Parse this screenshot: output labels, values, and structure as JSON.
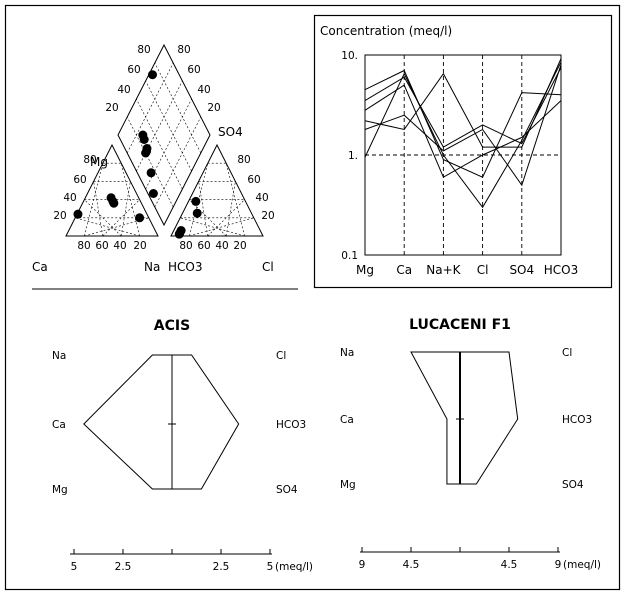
{
  "chart_data": [
    {
      "id": "piper",
      "type": "scatter",
      "title": "",
      "labels": {
        "mg": "Mg",
        "so4": "SO4",
        "ca": "Ca",
        "na": "Na",
        "hco3": "HCO3",
        "cl": "Cl"
      },
      "ticks": [
        "80",
        "60",
        "40",
        "20"
      ],
      "left_triangle_points": [
        {
          "ca": 10,
          "mg": 20
        },
        {
          "ca": 30,
          "mg": 42
        },
        {
          "ca": 30,
          "mg": 38
        },
        {
          "ca": 30,
          "mg": 36
        },
        {
          "ca": 75,
          "mg": 24
        }
      ],
      "right_triangle_points": [
        {
          "cl": 8,
          "so4": 38
        },
        {
          "cl": 16,
          "so4": 25
        },
        {
          "cl": 8,
          "so4": 6
        },
        {
          "cl": 8,
          "so4": 3
        },
        {
          "cl": 8,
          "so4": 2
        }
      ],
      "diamond_points": [
        {
          "u": 0.29,
          "v": 0.06
        },
        {
          "u": 0.43,
          "v": 0.15
        },
        {
          "u": 0.6,
          "v": 0.22
        },
        {
          "u": 0.6,
          "v": 0.2
        },
        {
          "u": 0.61,
          "v": 0.24
        },
        {
          "u": 0.69,
          "v": 0.26
        },
        {
          "u": 0.73,
          "v": 0.27
        },
        {
          "u": 0.96,
          "v": 0.71
        }
      ]
    },
    {
      "id": "schoeller",
      "type": "line",
      "title": "Concentration (meq/l)",
      "categories": [
        "Mg",
        "Ca",
        "Na+K",
        "Cl",
        "SO4",
        "HCO3"
      ],
      "yscale": "log",
      "ylim": [
        0.1,
        10
      ],
      "ytick_labels": [
        "10.",
        "1.",
        "0.1"
      ],
      "series": [
        {
          "values": [
            0.95,
            6.5,
            1.0,
            0.3,
            1.4,
            8.5
          ]
        },
        {
          "values": [
            2.2,
            1.8,
            6.5,
            1.2,
            1.2,
            9.2
          ]
        },
        {
          "values": [
            3.5,
            6.0,
            1.2,
            2.0,
            1.3,
            7.5
          ]
        },
        {
          "values": [
            4.5,
            7.0,
            0.9,
            0.6,
            4.2,
            4.0
          ]
        },
        {
          "values": [
            1.8,
            2.5,
            1.1,
            1.8,
            0.5,
            8.0
          ]
        },
        {
          "values": [
            2.8,
            5.0,
            0.6,
            1.0,
            1.5,
            3.5
          ]
        }
      ]
    },
    {
      "id": "stiff-acis",
      "type": "line",
      "title": "ACIS",
      "left_labels": [
        "Na",
        "Ca",
        "Mg"
      ],
      "right_labels": [
        "Cl",
        "HCO3",
        "SO4"
      ],
      "left_values": [
        1.0,
        4.5,
        1.0
      ],
      "right_values": [
        1.0,
        3.4,
        1.5
      ],
      "xlim": [
        -5,
        5
      ],
      "tick_labels": [
        "5",
        "2.5",
        "2.5",
        "5"
      ],
      "unit": "(meq/l)"
    },
    {
      "id": "stiff-lucaceni",
      "type": "line",
      "title": "LUCACENI  F1",
      "left_labels": [
        "Na",
        "Ca",
        "Mg"
      ],
      "right_labels": [
        "Cl",
        "HCO3",
        "SO4"
      ],
      "left_values": [
        4.5,
        1.2,
        1.2
      ],
      "right_values": [
        4.5,
        5.3,
        1.5
      ],
      "xlim": [
        -9,
        9
      ],
      "tick_labels": [
        "9",
        "4.5",
        "4.5",
        "9"
      ],
      "unit": "(meq/l)"
    }
  ]
}
